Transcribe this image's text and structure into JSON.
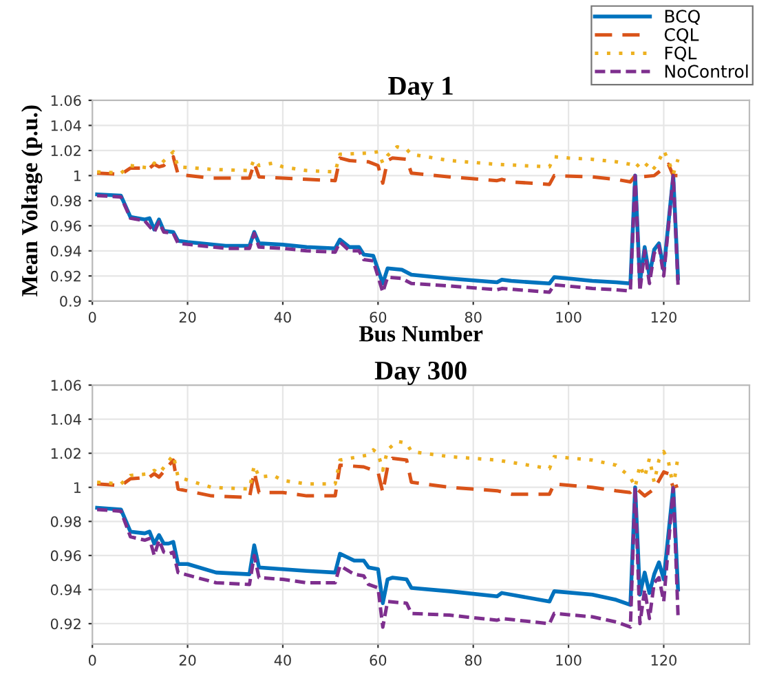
{
  "chart_data": [
    {
      "type": "line",
      "title": "Day 1",
      "xlabel": "Bus Number",
      "ylabel": "Mean Voltage (p.u.)",
      "xlim": [
        0,
        138
      ],
      "xticks": [
        0,
        20,
        40,
        60,
        80,
        100,
        120
      ],
      "ylim": [
        0.9,
        1.06
      ],
      "yticks": [
        0.9,
        0.92,
        0.94,
        0.96,
        0.98,
        1,
        1.02,
        1.04,
        1.06
      ],
      "grid": true,
      "legend": "top right",
      "marker": "none",
      "series": [
        {
          "name": "BCQ",
          "color": "#0072bd",
          "line_style": "solid",
          "x": [
            1,
            6,
            8,
            11,
            12,
            13,
            14,
            15,
            17,
            18,
            20,
            28,
            33,
            34,
            35,
            40,
            45,
            51,
            52,
            54,
            56,
            57,
            59,
            61,
            62,
            65,
            67,
            75,
            85,
            86,
            88,
            96,
            97,
            100,
            105,
            110,
            113,
            114,
            115,
            116,
            117,
            118,
            119,
            120,
            122,
            123
          ],
          "values": [
            0.985,
            0.984,
            0.967,
            0.965,
            0.966,
            0.957,
            0.965,
            0.956,
            0.955,
            0.948,
            0.947,
            0.944,
            0.944,
            0.955,
            0.946,
            0.945,
            0.943,
            0.942,
            0.949,
            0.943,
            0.943,
            0.937,
            0.936,
            0.914,
            0.926,
            0.925,
            0.921,
            0.918,
            0.915,
            0.917,
            0.916,
            0.914,
            0.919,
            0.918,
            0.916,
            0.915,
            0.914,
            1.0,
            0.915,
            0.943,
            0.92,
            0.941,
            0.946,
            0.925,
            1.0,
            0.918
          ]
        },
        {
          "name": "CQL",
          "color": "#d95319",
          "line_style": "dashed",
          "x": [
            1,
            6,
            8,
            12,
            13,
            14,
            15,
            17,
            18,
            25,
            33,
            34,
            35,
            40,
            45,
            51,
            52,
            54,
            58,
            60,
            61,
            62,
            63,
            66,
            67,
            75,
            85,
            86,
            88,
            96,
            97,
            105,
            110,
            113,
            114,
            115,
            118,
            121,
            122,
            123
          ],
          "values": [
            1.002,
            1.001,
            1.006,
            1.006,
            1.009,
            1.007,
            1.008,
            1.015,
            1.001,
            0.998,
            0.998,
            1.01,
            0.999,
            0.998,
            0.997,
            0.996,
            1.014,
            1.012,
            1.011,
            1.008,
            0.994,
            1.012,
            1.014,
            1.013,
            1.002,
            0.999,
            0.996,
            0.997,
            0.995,
            0.993,
            1.0,
            0.999,
            0.997,
            0.995,
            1.0,
            0.999,
            1.0,
            1.009,
            1.0,
            1.0
          ]
        },
        {
          "name": "FQL",
          "color": "#edb120",
          "line_style": "dotted",
          "x": [
            1,
            6,
            8,
            12,
            13,
            14,
            17,
            18,
            25,
            33,
            34,
            35,
            38,
            40,
            45,
            51,
            52,
            58,
            60,
            61,
            62,
            64,
            66,
            67,
            75,
            85,
            96,
            97,
            100,
            105,
            110,
            113,
            114,
            115,
            116,
            117,
            118,
            119,
            120,
            121,
            122,
            123
          ],
          "values": [
            1.003,
            1.002,
            1.008,
            1.006,
            1.01,
            1.008,
            1.019,
            1.007,
            1.005,
            1.004,
            1.013,
            1.008,
            1.01,
            1.007,
            1.004,
            1.003,
            1.017,
            1.018,
            1.019,
            1.01,
            1.016,
            1.023,
            1.021,
            1.017,
            1.012,
            1.009,
            1.007,
            1.015,
            1.014,
            1.013,
            1.011,
            1.009,
            1.006,
            1.01,
            1.007,
            1.011,
            1.006,
            1.012,
            1.02,
            1.012,
            1.001,
            1.013
          ]
        },
        {
          "name": "NoControl",
          "color": "#7e2f8e",
          "line_style": "dashed",
          "x": [
            1,
            6,
            8,
            11,
            13,
            14,
            15,
            17,
            18,
            28,
            33,
            34,
            35,
            40,
            45,
            51,
            52,
            54,
            56,
            57,
            59,
            61,
            62,
            65,
            67,
            75,
            85,
            86,
            96,
            97,
            105,
            110,
            113,
            114,
            115,
            116,
            117,
            118,
            119,
            120,
            122,
            123
          ],
          "values": [
            0.984,
            0.983,
            0.966,
            0.964,
            0.955,
            0.963,
            0.955,
            0.954,
            0.946,
            0.942,
            0.942,
            0.954,
            0.943,
            0.942,
            0.94,
            0.939,
            0.947,
            0.94,
            0.94,
            0.933,
            0.932,
            0.907,
            0.919,
            0.918,
            0.914,
            0.912,
            0.909,
            0.91,
            0.907,
            0.913,
            0.91,
            0.909,
            0.908,
            1.0,
            0.908,
            0.94,
            0.914,
            0.938,
            0.944,
            0.92,
            1.0,
            0.913
          ]
        }
      ]
    },
    {
      "type": "line",
      "title": "Day 300",
      "xlim": [
        0,
        138
      ],
      "xticks": [
        0,
        20,
        40,
        60,
        80,
        100,
        120
      ],
      "ylim": [
        0.908,
        1.06
      ],
      "yticks": [
        0.92,
        0.94,
        0.96,
        0.98,
        1,
        1.02,
        1.04,
        1.06
      ],
      "grid": true,
      "marker": "none",
      "series": [
        {
          "color": "#0072bd",
          "line_style": "solid",
          "x": [
            1,
            6,
            8,
            11,
            12,
            13,
            14,
            15,
            16,
            17,
            18,
            20,
            26,
            33,
            34,
            35,
            40,
            45,
            51,
            52,
            55,
            57,
            58,
            60,
            61,
            62,
            63,
            66,
            67,
            75,
            85,
            86,
            96,
            97,
            105,
            110,
            113,
            114,
            115,
            116,
            117,
            118,
            119,
            120,
            122,
            123
          ],
          "values": [
            0.988,
            0.987,
            0.974,
            0.973,
            0.974,
            0.967,
            0.972,
            0.967,
            0.967,
            0.968,
            0.955,
            0.955,
            0.95,
            0.949,
            0.966,
            0.953,
            0.952,
            0.951,
            0.95,
            0.961,
            0.957,
            0.957,
            0.953,
            0.952,
            0.932,
            0.946,
            0.947,
            0.946,
            0.941,
            0.939,
            0.936,
            0.938,
            0.933,
            0.939,
            0.937,
            0.934,
            0.931,
            1.0,
            0.937,
            0.95,
            0.938,
            0.949,
            0.956,
            0.946,
            1.0,
            0.94
          ]
        },
        {
          "color": "#d95319",
          "line_style": "dashed",
          "x": [
            1,
            6,
            8,
            12,
            13,
            14,
            17,
            18,
            25,
            33,
            34,
            35,
            40,
            45,
            51,
            52,
            57,
            60,
            61,
            62,
            63,
            66,
            67,
            75,
            85,
            88,
            96,
            97,
            105,
            110,
            113,
            114,
            116,
            118,
            120,
            121,
            122,
            123
          ],
          "values": [
            1.002,
            1.001,
            1.005,
            1.006,
            1.008,
            1.006,
            1.016,
            0.999,
            0.995,
            0.994,
            1.009,
            0.997,
            0.997,
            0.995,
            0.995,
            1.013,
            1.012,
            1.009,
            0.997,
            1.012,
            1.017,
            1.016,
            1.003,
            1.0,
            0.998,
            0.996,
            0.996,
            1.002,
            1.0,
            0.998,
            0.997,
            1.0,
            0.995,
            0.999,
            1.009,
            1.008,
            1.0,
            1.001
          ]
        },
        {
          "color": "#edb120",
          "line_style": "dotted",
          "x": [
            1,
            6,
            8,
            12,
            13,
            14,
            17,
            18,
            25,
            33,
            34,
            35,
            38,
            40,
            45,
            51,
            52,
            58,
            59,
            60,
            61,
            62,
            64,
            66,
            67,
            75,
            85,
            96,
            97,
            105,
            110,
            113,
            114,
            115,
            116,
            117,
            118,
            119,
            120,
            121,
            122,
            123
          ],
          "values": [
            1.003,
            1.002,
            1.007,
            1.008,
            1.01,
            1.008,
            1.019,
            1.006,
            1.0,
            0.999,
            1.013,
            1.006,
            1.007,
            1.004,
            1.002,
            1.002,
            1.016,
            1.019,
            1.022,
            1.02,
            1.01,
            1.022,
            1.027,
            1.026,
            1.021,
            1.018,
            1.016,
            1.011,
            1.018,
            1.016,
            1.013,
            1.006,
            1.0,
            1.013,
            1.006,
            1.017,
            1.003,
            1.016,
            1.021,
            1.015,
            1.0,
            1.018
          ]
        },
        {
          "color": "#7e2f8e",
          "line_style": "dashed",
          "x": [
            1,
            6,
            8,
            11,
            12,
            13,
            14,
            15,
            16,
            17,
            18,
            26,
            33,
            34,
            35,
            40,
            45,
            51,
            52,
            55,
            57,
            58,
            60,
            61,
            62,
            66,
            67,
            75,
            85,
            86,
            96,
            97,
            105,
            110,
            113,
            114,
            115,
            116,
            117,
            118,
            119,
            120,
            122,
            123
          ],
          "values": [
            0.987,
            0.986,
            0.971,
            0.969,
            0.97,
            0.96,
            0.969,
            0.962,
            0.961,
            0.962,
            0.95,
            0.944,
            0.943,
            0.96,
            0.947,
            0.946,
            0.944,
            0.944,
            0.954,
            0.949,
            0.948,
            0.943,
            0.941,
            0.918,
            0.933,
            0.932,
            0.926,
            0.925,
            0.922,
            0.923,
            0.92,
            0.926,
            0.924,
            0.921,
            0.918,
            1.0,
            0.92,
            0.94,
            0.923,
            0.944,
            0.947,
            0.933,
            1.0,
            0.925
          ]
        }
      ]
    }
  ]
}
